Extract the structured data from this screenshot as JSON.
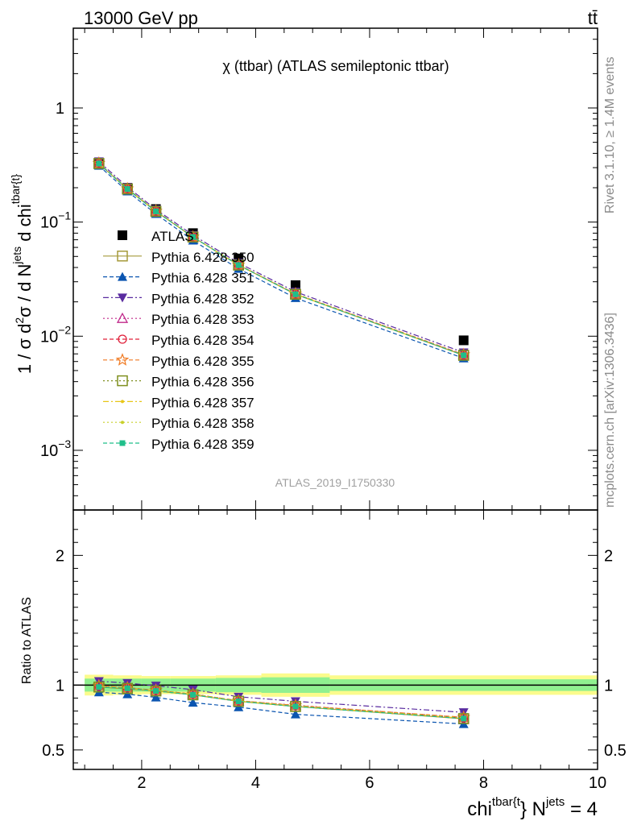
{
  "header": {
    "energy": "13000 GeV pp",
    "process": "tt̄"
  },
  "side_labels": {
    "rivet": "Rivet 3.1.10, ≥ 1.4M events",
    "mcplots": "mcplots.cern.ch [arXiv:1306.3436]"
  },
  "watermark": "ATLAS_2019_I1750330",
  "chart_data": [
    {
      "type": "scatter",
      "panel": "main",
      "title": "χ (ttbar) (ATLAS semileptonic ttbar)",
      "ylabel": "1 / σ d²σ / d Nʲᵉᵗˢ d chiᵗᵇᵃʳ⁽ᵗ⁾",
      "yscale": "log",
      "ylim": [
        0.0003,
        5
      ],
      "xlim": [
        0.8,
        10
      ],
      "y_ticks": [
        {
          "value": 0.001,
          "label": "10",
          "exp": "−3"
        },
        {
          "value": 0.01,
          "label": "10",
          "exp": "−2"
        },
        {
          "value": 0.1,
          "label": "10",
          "exp": "−1"
        },
        {
          "value": 1,
          "label": "1",
          "exp": ""
        }
      ],
      "legend_position": "left",
      "x": [
        1.25,
        1.75,
        2.25,
        2.9,
        3.7,
        4.7,
        7.65
      ],
      "series": [
        {
          "name": "ATLAS",
          "color": "#000000",
          "marker": "square-filled",
          "dash": "none",
          "values": [
            0.33,
            0.2,
            0.13,
            0.08,
            0.048,
            0.028,
            0.0092
          ]
        },
        {
          "name": "Pythia 6.428 350",
          "color": "#a59a3b",
          "marker": "square-open",
          "dash": "solid",
          "values": [
            0.325,
            0.194,
            0.124,
            0.074,
            0.042,
            0.0233,
            0.0068
          ]
        },
        {
          "name": "Pythia 6.428 351",
          "color": "#0b55b0",
          "marker": "triangle-up-filled",
          "dash": "dashed",
          "values": [
            0.312,
            0.186,
            0.118,
            0.069,
            0.039,
            0.0216,
            0.0064
          ]
        },
        {
          "name": "Pythia 6.428 352",
          "color": "#5a2ca0",
          "marker": "triangle-down-filled",
          "dash": "dashdot",
          "values": [
            0.34,
            0.203,
            0.129,
            0.077,
            0.0438,
            0.0245,
            0.0072
          ]
        },
        {
          "name": "Pythia 6.428 353",
          "color": "#c0288a",
          "marker": "triangle-up-open",
          "dash": "dotted",
          "values": [
            0.328,
            0.196,
            0.125,
            0.074,
            0.0422,
            0.0235,
            0.0069
          ]
        },
        {
          "name": "Pythia 6.428 354",
          "color": "#e0203a",
          "marker": "circle-open",
          "dash": "dashed",
          "values": [
            0.327,
            0.196,
            0.125,
            0.074,
            0.0421,
            0.0234,
            0.0068
          ]
        },
        {
          "name": "Pythia 6.428 355",
          "color": "#f07a22",
          "marker": "star-open",
          "dash": "dashed",
          "values": [
            0.328,
            0.196,
            0.125,
            0.074,
            0.0422,
            0.0235,
            0.0069
          ]
        },
        {
          "name": "Pythia 6.428 356",
          "color": "#7f8f1f",
          "marker": "square-open",
          "dash": "dotted",
          "values": [
            0.326,
            0.195,
            0.124,
            0.074,
            0.042,
            0.0233,
            0.0068
          ]
        },
        {
          "name": "Pythia 6.428 357",
          "color": "#e8c618",
          "marker": "dot",
          "dash": "dashdot",
          "values": [
            0.327,
            0.195,
            0.125,
            0.074,
            0.0421,
            0.0234,
            0.0068
          ]
        },
        {
          "name": "Pythia 6.428 358",
          "color": "#c8d02a",
          "marker": "dot",
          "dash": "dotted",
          "values": [
            0.327,
            0.196,
            0.125,
            0.074,
            0.0421,
            0.0234,
            0.0068
          ]
        },
        {
          "name": "Pythia 6.428 359",
          "color": "#1fbf8a",
          "marker": "square-small-filled",
          "dash": "dashed",
          "values": [
            0.326,
            0.195,
            0.124,
            0.074,
            0.042,
            0.0233,
            0.0068
          ]
        }
      ]
    },
    {
      "type": "scatter",
      "panel": "ratio",
      "ylabel": "Ratio to ATLAS",
      "xlabel": "chiᵗᵇᵃʳ⁽ᵗ⁾ Nʲᵉᵗˢ = 4",
      "ylim": [
        0.35,
        2.35
      ],
      "xlim": [
        0.8,
        10
      ],
      "y_ticks": [
        0.5,
        1,
        2
      ],
      "x_ticks": [
        2,
        4,
        6,
        8,
        10
      ],
      "bands": {
        "edges": [
          1.0,
          1.5,
          2.0,
          2.5,
          3.3,
          4.1,
          5.3,
          10.0
        ],
        "inner": [
          0.05,
          0.05,
          0.05,
          0.05,
          0.055,
          0.06,
          0.045
        ],
        "outer": [
          0.08,
          0.075,
          0.07,
          0.07,
          0.075,
          0.09,
          0.075
        ],
        "inner_color": "#90f090",
        "outer_color": "#fbfb8c"
      },
      "x": [
        1.25,
        1.75,
        2.25,
        2.9,
        3.7,
        4.7,
        7.65
      ],
      "series": [
        {
          "name": "Pythia 6.428 350",
          "values": [
            0.985,
            0.97,
            0.955,
            0.925,
            0.875,
            0.835,
            0.74
          ]
        },
        {
          "name": "Pythia 6.428 351",
          "values": [
            0.945,
            0.93,
            0.905,
            0.865,
            0.83,
            0.775,
            0.7
          ]
        },
        {
          "name": "Pythia 6.428 352",
          "values": [
            1.03,
            1.015,
            0.995,
            0.965,
            0.91,
            0.875,
            0.79
          ]
        },
        {
          "name": "Pythia 6.428 353",
          "values": [
            0.995,
            0.98,
            0.96,
            0.93,
            0.88,
            0.845,
            0.75
          ]
        },
        {
          "name": "Pythia 6.428 354",
          "values": [
            0.99,
            0.98,
            0.96,
            0.93,
            0.878,
            0.84,
            0.745
          ]
        },
        {
          "name": "Pythia 6.428 355",
          "values": [
            0.995,
            0.98,
            0.96,
            0.93,
            0.88,
            0.843,
            0.752
          ]
        },
        {
          "name": "Pythia 6.428 356",
          "values": [
            0.985,
            0.975,
            0.955,
            0.925,
            0.875,
            0.835,
            0.742
          ]
        },
        {
          "name": "Pythia 6.428 357",
          "values": [
            0.99,
            0.975,
            0.958,
            0.927,
            0.877,
            0.838,
            0.745
          ]
        },
        {
          "name": "Pythia 6.428 358",
          "values": [
            0.99,
            0.978,
            0.96,
            0.93,
            0.879,
            0.84,
            0.747
          ]
        },
        {
          "name": "Pythia 6.428 359",
          "values": [
            0.985,
            0.975,
            0.955,
            0.925,
            0.875,
            0.835,
            0.742
          ]
        }
      ]
    }
  ]
}
